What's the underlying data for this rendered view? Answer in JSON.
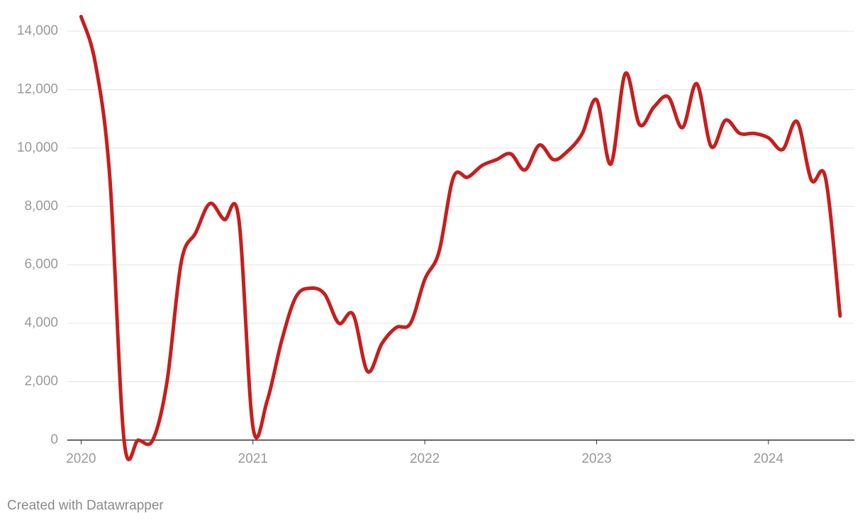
{
  "chart_data": {
    "type": "line",
    "footer": "Created with Datawrapper",
    "x": [
      2020.0,
      2020.083,
      2020.167,
      2020.25,
      2020.333,
      2020.417,
      2020.5,
      2020.583,
      2020.667,
      2020.75,
      2020.833,
      2020.917,
      2021.0,
      2021.083,
      2021.167,
      2021.25,
      2021.333,
      2021.417,
      2021.5,
      2021.583,
      2021.667,
      2021.75,
      2021.833,
      2021.917,
      2022.0,
      2022.083,
      2022.167,
      2022.25,
      2022.333,
      2022.417,
      2022.5,
      2022.583,
      2022.667,
      2022.75,
      2022.833,
      2022.917,
      2023.0,
      2023.083,
      2023.167,
      2023.25,
      2023.333,
      2023.417,
      2023.5,
      2023.583,
      2023.667,
      2023.75,
      2023.833,
      2023.917,
      2024.0,
      2024.083,
      2024.167,
      2024.25,
      2024.333,
      2024.417
    ],
    "series": [
      {
        "color": "#c71e1d",
        "values": [
          14500,
          12900,
          9000,
          0,
          0,
          0,
          2000,
          6100,
          7100,
          8100,
          7550,
          7600,
          450,
          1350,
          3400,
          4900,
          5200,
          5000,
          4000,
          4300,
          2350,
          3300,
          3850,
          4000,
          5500,
          6450,
          9000,
          9000,
          9400,
          9600,
          9800,
          9250,
          10100,
          9600,
          9900,
          10500,
          11650,
          9450,
          12550,
          10800,
          11400,
          11750,
          10700,
          12200,
          10050,
          10950,
          10500,
          10500,
          10350,
          9950,
          10900,
          8900,
          8950,
          4250
        ]
      }
    ],
    "xlim": [
      2019.92,
      2024.5
    ],
    "xticks": [
      2020,
      2021,
      2022,
      2023,
      2024
    ],
    "ylim": [
      0,
      14000
    ],
    "yticks": [
      0,
      {
        "value": 2000,
        "label": "2,000"
      },
      {
        "value": 4000,
        "label": "4,000"
      },
      {
        "value": 6000,
        "label": "6,000"
      },
      {
        "value": 8000,
        "label": "8,000"
      },
      {
        "value": 10000,
        "label": "10,000"
      },
      {
        "value": 12000,
        "label": "12,000"
      },
      {
        "value": 14000,
        "label": "14,000"
      }
    ],
    "grid": true
  }
}
